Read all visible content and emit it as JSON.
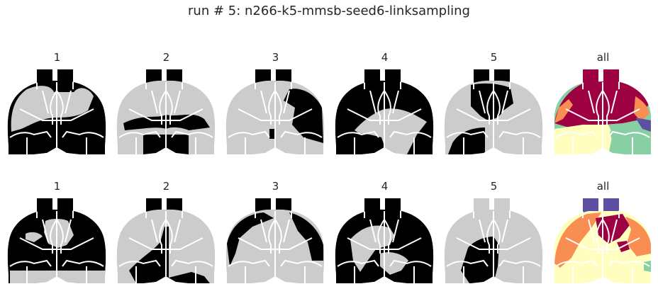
{
  "figure": {
    "title": "run # 5: n266-k5-mmsb-seed6-linksampling"
  },
  "colors": {
    "background": "#ffffff",
    "region_on": "#000000",
    "region_off": "#cccccc",
    "borders": "#ffffff",
    "text": "#262626",
    "palette": [
      "#5e4fa2",
      "#9e0142",
      "#f98e52",
      "#fffebe",
      "#88cfa4"
    ]
  },
  "rows": [
    {
      "panels": [
        {
          "label": "1",
          "type": "binary"
        },
        {
          "label": "2",
          "type": "binary"
        },
        {
          "label": "3",
          "type": "binary"
        },
        {
          "label": "4",
          "type": "binary"
        },
        {
          "label": "5",
          "type": "binary"
        },
        {
          "label": "all",
          "type": "combined"
        }
      ]
    },
    {
      "panels": [
        {
          "label": "1",
          "type": "binary"
        },
        {
          "label": "2",
          "type": "binary"
        },
        {
          "label": "3",
          "type": "binary"
        },
        {
          "label": "4",
          "type": "binary"
        },
        {
          "label": "5",
          "type": "binary"
        },
        {
          "label": "all",
          "type": "combined"
        }
      ]
    }
  ]
}
